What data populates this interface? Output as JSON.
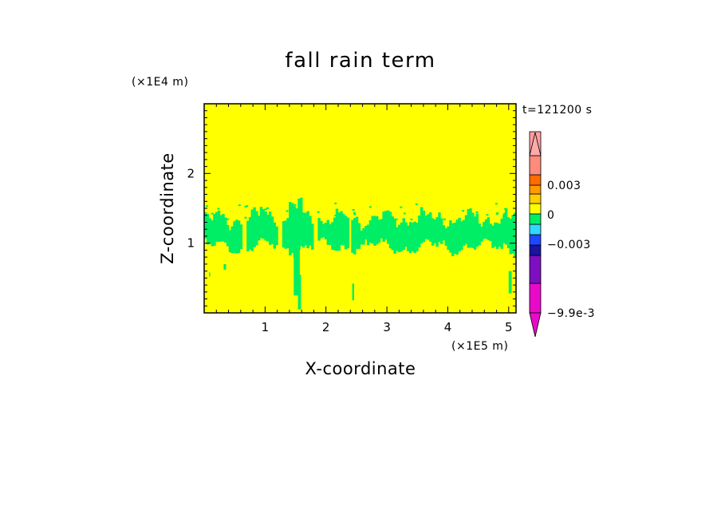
{
  "chart_data": {
    "type": "heatmap",
    "title": "fall rain term",
    "xlabel": "X-coordinate",
    "ylabel": "Z-coordinate",
    "x_unit_label": "(×1E5 m)",
    "y_unit_label": "(×1E4 m)",
    "time_label": "t=121200 s",
    "xlim": [
      0,
      5.12
    ],
    "ylim": [
      0,
      3.0
    ],
    "xticks": [
      "1",
      "2",
      "3",
      "4",
      "5"
    ],
    "xtick_values": [
      1,
      2,
      3,
      4,
      5
    ],
    "yticks": [
      "1",
      "2"
    ],
    "ytick_values": [
      1,
      2
    ],
    "background_color": "#ffff00",
    "feature_color": "#00ee66",
    "colorbar": {
      "labels": [
        "0.003",
        "0",
        "-0.003",
        "-9.9e-3"
      ],
      "label_values": [
        0.003,
        0,
        -0.003,
        -0.0099
      ],
      "colors": [
        "#e80ac8",
        "#7d0fc0",
        "#1a14a0",
        "#1f47ff",
        "#2fd8ff",
        "#00ee66",
        "#ffff00",
        "#ffcf00",
        "#ff9b00",
        "#ff6c00",
        "#ff8b7c",
        "#ff9ea0"
      ],
      "lower_arrow_color": "#e80ac8",
      "upper_arrow_color": "#ffaaaa"
    }
  }
}
